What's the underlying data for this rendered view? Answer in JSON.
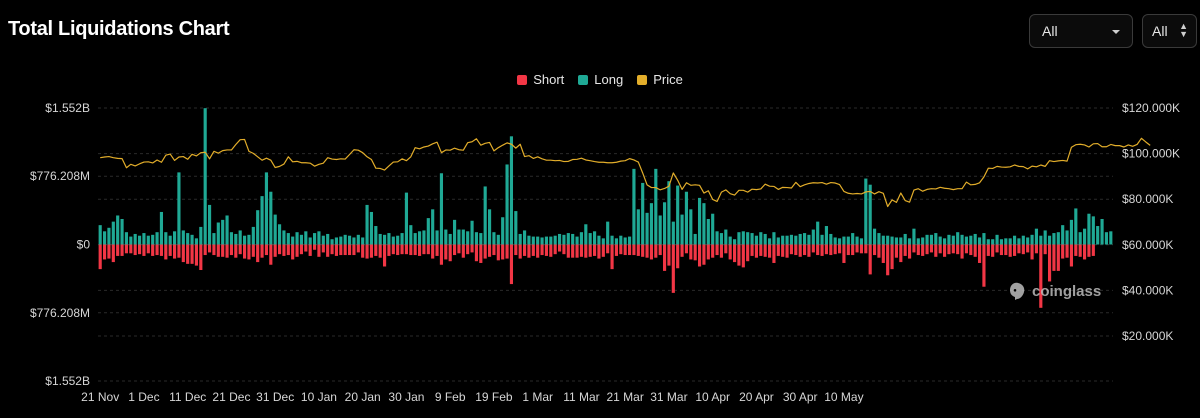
{
  "header": {
    "title": "Total Liquidations Chart"
  },
  "controls": {
    "range_select": "All",
    "exchange_select": "All"
  },
  "watermark": "coinglass",
  "colors": {
    "short": "#f23645",
    "long": "#1fa995",
    "price": "#e2ad2a",
    "background": "#000000"
  },
  "chart_data": {
    "type": "bar",
    "title": "Total Liquidations Chart",
    "legend": [
      {
        "name": "Short",
        "color": "#f23645"
      },
      {
        "name": "Long",
        "color": "#1fa995"
      },
      {
        "name": "Price",
        "color": "#e2ad2a"
      }
    ],
    "legend_position": "top-center",
    "grid": true,
    "y_left": {
      "ticks": [
        "$1.552B",
        "$776.208M",
        "$0",
        "$776.208M",
        "$1.552B"
      ],
      "tick_values": [
        1.552,
        0.776208,
        0,
        -0.776208,
        -1.552
      ],
      "range": [
        -1.552,
        1.552
      ],
      "unit": "billion USD"
    },
    "y_right": {
      "ticks": [
        "$120.000K",
        "$100.000K",
        "$80.000K",
        "$60.000K",
        "$40.000K",
        "$20.000K"
      ],
      "tick_values": [
        120,
        100,
        80,
        60,
        40,
        20
      ],
      "unit": "thousand USD"
    },
    "x_ticks": [
      "21 Nov",
      "1 Dec",
      "11 Dec",
      "21 Dec",
      "31 Dec",
      "10 Jan",
      "20 Jan",
      "30 Jan",
      "9 Feb",
      "19 Feb",
      "1 Mar",
      "11 Mar",
      "21 Mar",
      "31 Mar",
      "10 Apr",
      "20 Apr",
      "30 Apr",
      "10 May"
    ],
    "x_start_date": "2024-11-21",
    "series": [
      {
        "name": "Long",
        "unit": "billion USD",
        "values": [
          0.22,
          0.15,
          0.19,
          0.26,
          0.33,
          0.29,
          0.14,
          0.09,
          0.12,
          0.1,
          0.13,
          0.1,
          0.11,
          0.14,
          0.37,
          0.14,
          0.1,
          0.15,
          0.82,
          0.16,
          0.13,
          0.11,
          0.07,
          0.2,
          1.55,
          0.45,
          0.13,
          0.25,
          0.28,
          0.33,
          0.14,
          0.12,
          0.16,
          0.1,
          0.11,
          0.2,
          0.39,
          0.55,
          0.82,
          0.6,
          0.34,
          0.23,
          0.16,
          0.13,
          0.09,
          0.14,
          0.11,
          0.15,
          0.08,
          0.13,
          0.15,
          0.1,
          0.12,
          0.06,
          0.08,
          0.09,
          0.11,
          0.1,
          0.08,
          0.11,
          0.08,
          0.45,
          0.37,
          0.21,
          0.12,
          0.11,
          0.13,
          0.09,
          0.1,
          0.13,
          0.59,
          0.22,
          0.13,
          0.15,
          0.16,
          0.3,
          0.4,
          0.16,
          0.81,
          0.17,
          0.12,
          0.28,
          0.17,
          0.17,
          0.15,
          0.27,
          0.14,
          0.13,
          0.66,
          0.4,
          0.14,
          0.11,
          0.31,
          0.91,
          1.23,
          0.38,
          0.12,
          0.16,
          0.1,
          0.09,
          0.09,
          0.08,
          0.09,
          0.09,
          0.1,
          0.12,
          0.11,
          0.13,
          0.12,
          0.09,
          0.14,
          0.23,
          0.13,
          0.15,
          0.1,
          0.07,
          0.26,
          0.1,
          0.07,
          0.1,
          0.08,
          0.09,
          0.86,
          0.4,
          0.7,
          0.36,
          0.47,
          0.86,
          0.33,
          0.48,
          0.72,
          0.26,
          0.67,
          0.34,
          0.6,
          0.4,
          0.12,
          0.53,
          0.47,
          0.29,
          0.35,
          0.15,
          0.13,
          0.17,
          0.09,
          0.06,
          0.14,
          0.15,
          0.14,
          0.13,
          0.1,
          0.14,
          0.12,
          0.07,
          0.14,
          0.08,
          0.1,
          0.1,
          0.11,
          0.1,
          0.12,
          0.13,
          0.11,
          0.17,
          0.26,
          0.11,
          0.21,
          0.12,
          0.08,
          0.07,
          0.09,
          0.09,
          0.13,
          0.09,
          0.07,
          0.75,
          0.68,
          0.18,
          0.13,
          0.1,
          0.1,
          0.09,
          0.08,
          0.08,
          0.12,
          0.07,
          0.18,
          0.07,
          0.08,
          0.11,
          0.11,
          0.13,
          0.09,
          0.07,
          0.11,
          0.1,
          0.14,
          0.11,
          0.09,
          0.1,
          0.12,
          0.08,
          0.13,
          0.06,
          0.06,
          0.11,
          0.06,
          0.07,
          0.07,
          0.1,
          0.07,
          0.1,
          0.08,
          0.11,
          0.18,
          0.1,
          0.16,
          0.1,
          0.13,
          0.14,
          0.22,
          0.16,
          0.28,
          0.41,
          0.14,
          0.18,
          0.35,
          0.32,
          0.21,
          0.29,
          0.14,
          0.15
        ]
      },
      {
        "name": "Short",
        "unit": "billion USD",
        "values": [
          0.28,
          0.17,
          0.16,
          0.2,
          0.13,
          0.13,
          0.1,
          0.1,
          0.12,
          0.11,
          0.13,
          0.1,
          0.13,
          0.12,
          0.13,
          0.17,
          0.13,
          0.16,
          0.15,
          0.2,
          0.22,
          0.22,
          0.24,
          0.29,
          0.12,
          0.09,
          0.12,
          0.14,
          0.14,
          0.15,
          0.12,
          0.15,
          0.11,
          0.16,
          0.17,
          0.14,
          0.2,
          0.15,
          0.12,
          0.23,
          0.14,
          0.11,
          0.13,
          0.12,
          0.17,
          0.14,
          0.11,
          0.08,
          0.13,
          0.06,
          0.14,
          0.09,
          0.14,
          0.11,
          0.13,
          0.12,
          0.12,
          0.12,
          0.12,
          0.09,
          0.15,
          0.16,
          0.15,
          0.13,
          0.15,
          0.25,
          0.13,
          0.11,
          0.12,
          0.11,
          0.11,
          0.12,
          0.12,
          0.13,
          0.11,
          0.11,
          0.16,
          0.13,
          0.23,
          0.17,
          0.19,
          0.12,
          0.1,
          0.15,
          0.11,
          0.09,
          0.19,
          0.21,
          0.16,
          0.14,
          0.12,
          0.18,
          0.17,
          0.16,
          0.45,
          0.12,
          0.16,
          0.13,
          0.15,
          0.13,
          0.15,
          0.12,
          0.13,
          0.14,
          0.11,
          0.08,
          0.11,
          0.15,
          0.15,
          0.15,
          0.14,
          0.15,
          0.14,
          0.13,
          0.16,
          0.14,
          0.1,
          0.28,
          0.13,
          0.11,
          0.12,
          0.12,
          0.12,
          0.13,
          0.14,
          0.15,
          0.17,
          0.15,
          0.12,
          0.3,
          0.24,
          0.55,
          0.27,
          0.14,
          0.1,
          0.17,
          0.18,
          0.25,
          0.23,
          0.17,
          0.15,
          0.12,
          0.15,
          0.1,
          0.17,
          0.2,
          0.24,
          0.26,
          0.19,
          0.13,
          0.15,
          0.13,
          0.14,
          0.15,
          0.21,
          0.13,
          0.14,
          0.15,
          0.11,
          0.12,
          0.14,
          0.12,
          0.14,
          0.09,
          0.12,
          0.13,
          0.11,
          0.12,
          0.11,
          0.1,
          0.21,
          0.12,
          0.12,
          0.09,
          0.1,
          0.1,
          0.34,
          0.12,
          0.15,
          0.21,
          0.35,
          0.28,
          0.15,
          0.2,
          0.13,
          0.16,
          0.09,
          0.12,
          0.13,
          0.11,
          0.09,
          0.14,
          0.1,
          0.14,
          0.11,
          0.1,
          0.11,
          0.16,
          0.1,
          0.12,
          0.14,
          0.21,
          0.48,
          0.13,
          0.14,
          0.09,
          0.12,
          0.12,
          0.14,
          0.13,
          0.1,
          0.11,
          0.09,
          0.17,
          0.1,
          0.72,
          0.11,
          0.42,
          0.3,
          0.3,
          0.16,
          0.15,
          0.25,
          0.13,
          0.14,
          0.17,
          0.14,
          0.13
        ]
      },
      {
        "name": "Price",
        "unit": "thousand USD",
        "axis": "right",
        "values": [
          98.2,
          98.5,
          98.7,
          98.2,
          97.9,
          97.8,
          93.8,
          95.3,
          94.6,
          95.5,
          96.3,
          96.4,
          95.9,
          97.2,
          96.2,
          99.3,
          99.8,
          97.0,
          98.5,
          98.7,
          97.5,
          99.7,
          99.0,
          100.4,
          100.6,
          97.7,
          101.0,
          100.2,
          101.3,
          101.6,
          101.6,
          104.0,
          106.1,
          106.2,
          101.0,
          100.1,
          98.6,
          97.1,
          98.0,
          97.1,
          93.9,
          94.4,
          95.4,
          98.6,
          96.4,
          96.6,
          96.0,
          96.0,
          95.8,
          94.5,
          95.3,
          95.8,
          98.2,
          97.6,
          97.4,
          97.7,
          97.6,
          99.6,
          101.7,
          101.5,
          100.4,
          98.6,
          97.4,
          93.6,
          93.5,
          92.8,
          94.6,
          96.3,
          96.4,
          97.7,
          96.9,
          98.6,
          102.6,
          102.1,
          102.9,
          103.3,
          104.3,
          105.0,
          100.4,
          101.6,
          101.5,
          102.4,
          101.7,
          101.5,
          104.8,
          105.2,
          106.5,
          103.7,
          104.5,
          104.9,
          101.2,
          102.6,
          103.7,
          104.7,
          104.1,
          102.4,
          104.1,
          98.7,
          99.1,
          97.9,
          98.6,
          97.7,
          97.1,
          97.1,
          96.9,
          97.0,
          96.5,
          96.6,
          97.4,
          97.5,
          98.0,
          97.2,
          96.9,
          96.5,
          96.2,
          96.2,
          96.0,
          96.0,
          96.2,
          96.7,
          96.9,
          97.8,
          97.2,
          96.3,
          91.5,
          86.3,
          85.1,
          85.1,
          84.1,
          84.7,
          85.7,
          91.5,
          88.3,
          84.3,
          87.2,
          86.1,
          86.3,
          86.1,
          82.7,
          83.7,
          79.9,
          79.0,
          83.1,
          84.1,
          82.4,
          81.8,
          83.9,
          83.9,
          83.1,
          84.4,
          84.2,
          84.5,
          86.6,
          85.7,
          85.6,
          84.3,
          85.2,
          85.1,
          84.9,
          87.4,
          85.5,
          86.3,
          86.9,
          87.2,
          87.1,
          87.3,
          86.6,
          87.3,
          87.1,
          86.4,
          83.4,
          82.6,
          82.3,
          82.5,
          82.3,
          83.2,
          83.4,
          82.3,
          83.3,
          82.6,
          76.8,
          79.7,
          78.6,
          82.7,
          79.4,
          78.7,
          84.0,
          84.6,
          83.5,
          84.3,
          84.6,
          84.5,
          85.2,
          84.8,
          84.6,
          84.2,
          84.6,
          84.6,
          87.5,
          86.3,
          86.5,
          87.2,
          89.8,
          93.6,
          93.5,
          94.4,
          94.1,
          94.0,
          94.2,
          95.0,
          94.4,
          94.3,
          93.3,
          94.5,
          94.2,
          95.0,
          94.4,
          96.9,
          96.5,
          96.8,
          97.0,
          96.7,
          102.8,
          103.9,
          104.1,
          103.8,
          102.9,
          104.3,
          104.4,
          103.0,
          103.0,
          104.0,
          103.5,
          103.5,
          102.9,
          103.8,
          103.2,
          104.0,
          106.7,
          105.1,
          103.6
        ]
      }
    ]
  }
}
